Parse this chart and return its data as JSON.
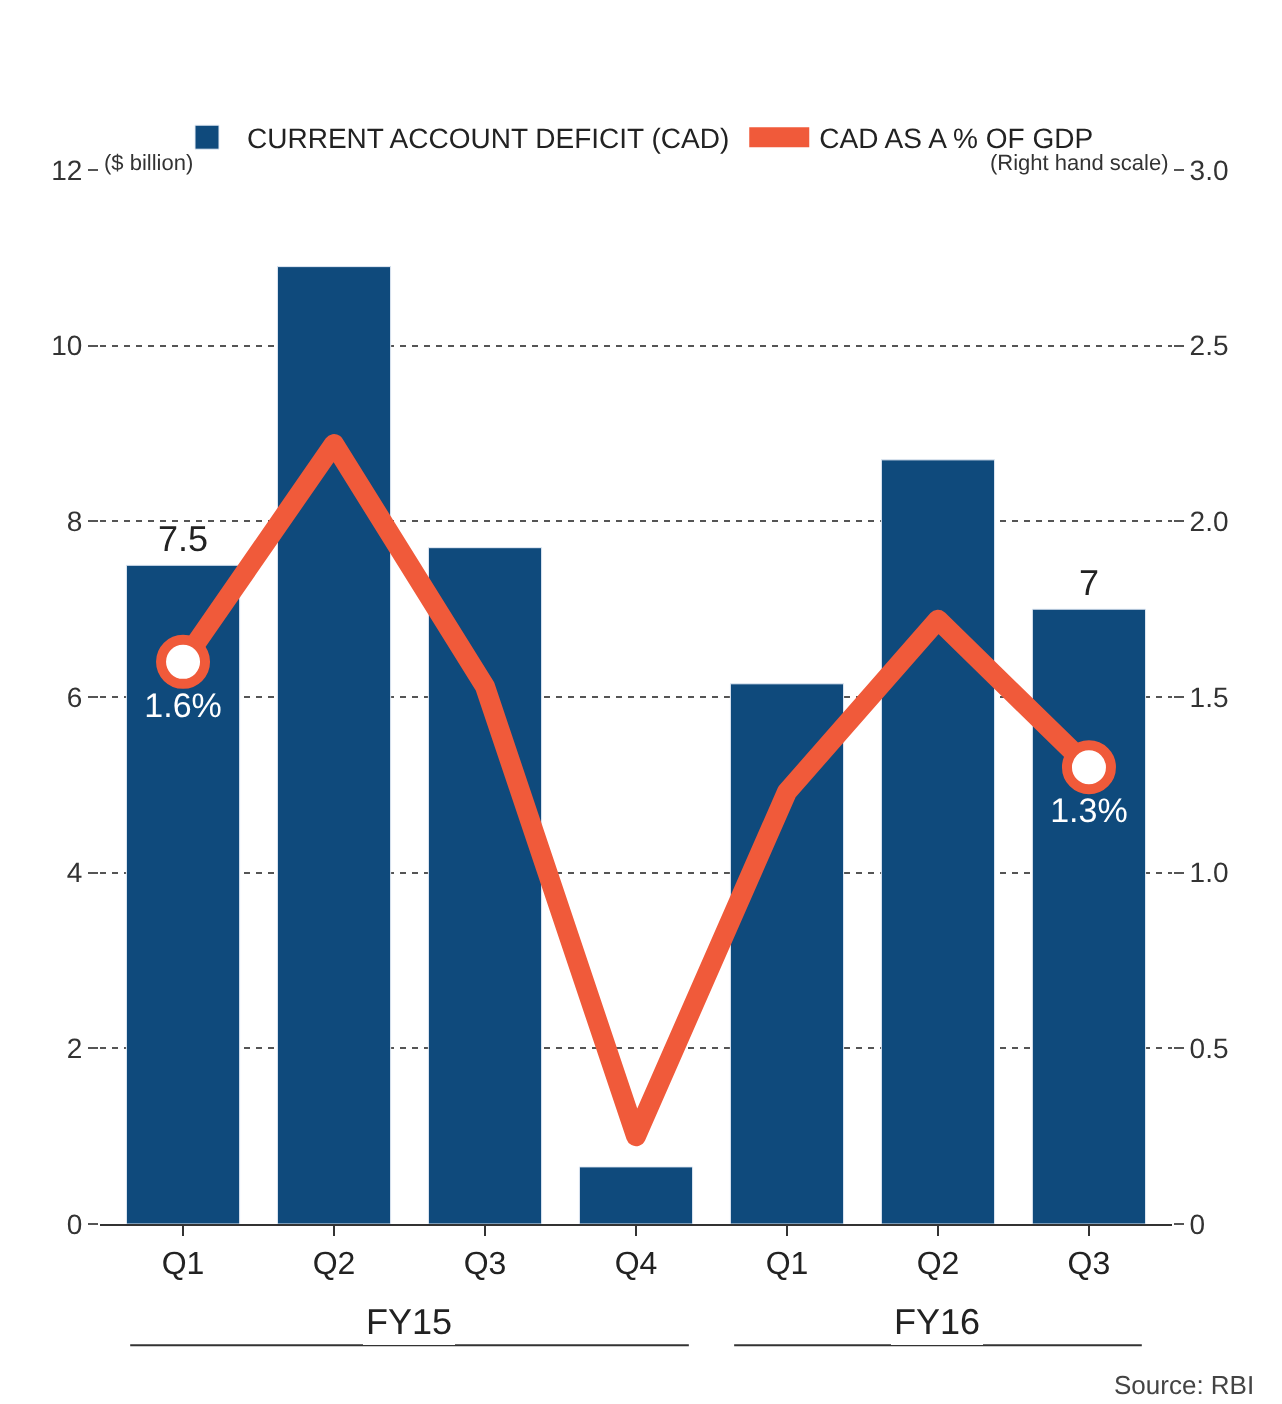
{
  "chart_data": {
    "type": "bar",
    "categories": [
      "Q1",
      "Q2",
      "Q3",
      "Q4",
      "Q1",
      "Q2",
      "Q3"
    ],
    "series": [
      {
        "name": "CURRENT ACCOUNT DEFICIT (CAD)",
        "color": "#0f4a7c",
        "values": [
          7.5,
          10.9,
          7.7,
          0.65,
          6.15,
          8.7,
          7.0
        ],
        "value_labels": [
          "7.5",
          null,
          null,
          null,
          null,
          null,
          "7"
        ]
      },
      {
        "name": "CAD AS A % OF GDP",
        "type": "line",
        "axis": "y2",
        "color": "#f05a3a",
        "values": [
          1.6,
          2.22,
          1.53,
          0.25,
          1.23,
          1.72,
          1.3
        ],
        "value_labels": [
          "1.6%",
          null,
          null,
          null,
          null,
          null,
          "1.3%"
        ]
      }
    ],
    "ylabel": "($ billion)",
    "y2label": "(Right hand scale)",
    "ylim": [
      0,
      12
    ],
    "yticks": [
      0,
      2,
      4,
      6,
      8,
      10,
      12
    ],
    "y2lim": [
      0,
      3
    ],
    "y2ticks": [
      {
        "value": 0,
        "label": "0"
      },
      {
        "value": 0.5,
        "label": "0.5"
      },
      {
        "value": 1,
        "label": "1.0"
      },
      {
        "value": 1.5,
        "label": "1.5"
      },
      {
        "value": 2,
        "label": "2.0"
      },
      {
        "value": 2.5,
        "label": "2.5"
      },
      {
        "value": 3,
        "label": "3.0"
      }
    ],
    "grid": "y",
    "legend": "top",
    "line_style": "solid",
    "annotations": [
      "FY15",
      "FY16",
      "Source: RBI"
    ]
  }
}
